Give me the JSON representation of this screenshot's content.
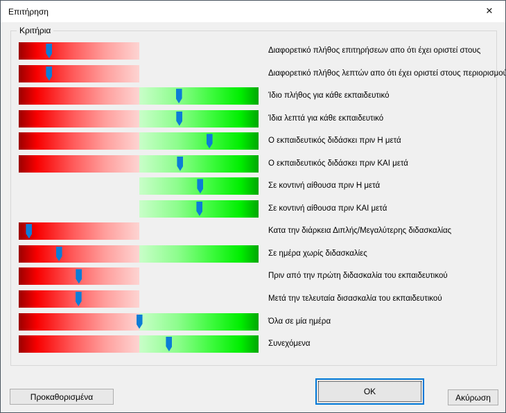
{
  "window": {
    "title": "Επιτήρηση",
    "close_glyph": "✕"
  },
  "groupbox": {
    "label": "Κριτήρια"
  },
  "criteria": [
    {
      "label": "Διαφορετικό πλήθος επιτηρήσεων απο ότι έχει οριστεί στους",
      "bar": "red",
      "slider_percent": 12.7
    },
    {
      "label": "Διαφορετικό πλήθος λεπτών απο ότι έχει οριστεί στους περιορισμούς",
      "bar": "red",
      "slider_percent": 12.7
    },
    {
      "label": "Ίδιο πλήθος για κάθε εκπαιδευτικό",
      "bar": "full",
      "slider_percent": 66.8
    },
    {
      "label": "Ίδια λεπτά για κάθε εκπαιδευτικό",
      "bar": "full",
      "slider_percent": 67.0
    },
    {
      "label": "Ο εκπαιδευτικός διδάσκει πριν Η μετά",
      "bar": "full",
      "slider_percent": 79.5
    },
    {
      "label": "Ο εκπαιδευτικός διδάσκει πριν ΚΑΙ μετά",
      "bar": "full",
      "slider_percent": 67.3
    },
    {
      "label": "Σε κοντινή αίθουσα πριν Η μετά",
      "bar": "green",
      "slider_percent": 75.7
    },
    {
      "label": "Σε κοντινή αίθουσα πριν ΚΑΙ μετά",
      "bar": "green",
      "slider_percent": 75.4
    },
    {
      "label": "Κατα την διάρκεια Διπλής/Μεγαλύτερης διδασκαλίας",
      "bar": "red",
      "slider_percent": 4.3
    },
    {
      "label": "Σε ημέρα χωρίς διδασκαλίες",
      "bar": "full",
      "slider_percent": 16.8
    },
    {
      "label": "Πριν από την πρώτη διδασκαλία του εκπαιδευτικού",
      "bar": "red",
      "slider_percent": 25.1
    },
    {
      "label": "Μετά την τελευταία δισασκαλία του εκπαιδευτικού",
      "bar": "red",
      "slider_percent": 24.9
    },
    {
      "label": "Όλα σε μία ημέρα",
      "bar": "full",
      "slider_percent": 50.3
    },
    {
      "label": "Συνεχόμενα",
      "bar": "full",
      "slider_percent": 62.7
    }
  ],
  "buttons": {
    "defaults": "Προκαθορισμένα",
    "ok": "OK",
    "cancel": "Ακύρωση"
  },
  "colors": {
    "handle_blue": "#0c7cd6",
    "ok_border_blue": "#0078d7",
    "red_dark": "#9a0000",
    "red_bright": "#f80000",
    "red_light": "#fdd4d2",
    "green_light": "#c9fec9",
    "green_bright": "#00ee00",
    "green_dark": "#00a702"
  }
}
